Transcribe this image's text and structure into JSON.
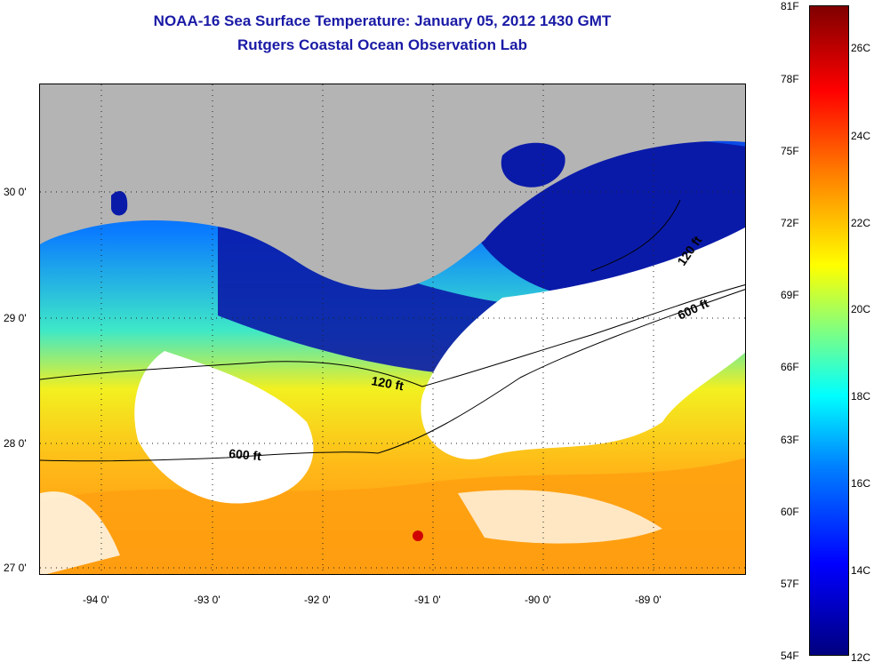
{
  "title": {
    "line1": "NOAA-16 Sea Surface Temperature:  January 05, 2012 1430 GMT",
    "line2": "Rutgers Coastal Ocean Observation Lab"
  },
  "map": {
    "y_ticks": [
      "30 0'",
      "29 0'",
      "28 0'",
      "27 0'"
    ],
    "x_ticks": [
      "-94 0'",
      "-93 0'",
      "-92 0'",
      "-91 0'",
      "-90 0'",
      "-89 0'"
    ],
    "contours": [
      "120 ft",
      "600 ft",
      "120 ft",
      "600 ft"
    ],
    "colors": {
      "land": "#b4b4b4",
      "cloud": "#ffffff"
    }
  },
  "colorbar": {
    "fahrenheit": [
      "81F",
      "78F",
      "75F",
      "72F",
      "69F",
      "66F",
      "63F",
      "60F",
      "57F",
      "54F"
    ],
    "celsius": [
      "26C",
      "24C",
      "22C",
      "20C",
      "18C",
      "16C",
      "14C",
      "12C"
    ]
  }
}
